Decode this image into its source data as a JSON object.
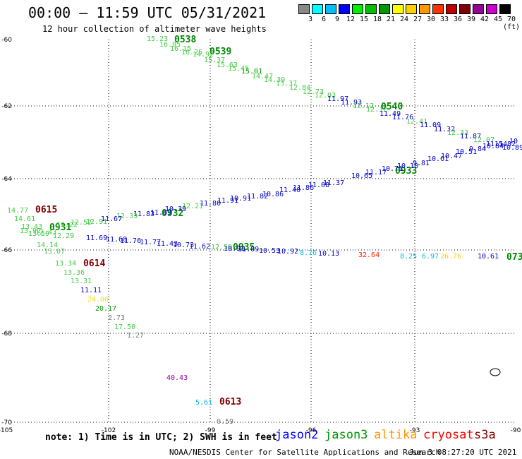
{
  "title": "00:00 – 11:59 UTC 05/31/2021",
  "subtitle": "12 hour collection of altimeter wave heights",
  "scale": {
    "colors": [
      "#888888",
      "#00ffff",
      "#00bfff",
      "#0000ff",
      "#00ee00",
      "#00c000",
      "#009900",
      "#ffff00",
      "#ffd000",
      "#ff9900",
      "#ff3300",
      "#c00000",
      "#800000",
      "#990099",
      "#cc00cc",
      "#000000"
    ],
    "labels": [
      "3",
      "6",
      "9",
      "12",
      "15",
      "18",
      "21",
      "24",
      "27",
      "30",
      "33",
      "36",
      "39",
      "42",
      "45",
      "70 (ft)"
    ]
  },
  "axis": {
    "lat_labels": [
      "-60",
      "-62",
      "-64",
      "-66",
      "-68",
      "-70"
    ],
    "lon_labels": [
      "-105",
      "-102",
      "-99",
      "-96",
      "-93",
      "-90"
    ]
  },
  "passes": [
    {
      "label": "0538",
      "color": "#008800"
    },
    {
      "label": "0539",
      "color": "#008800"
    },
    {
      "label": "0540",
      "color": "#008800"
    },
    {
      "label": "0933",
      "color": "#008800"
    },
    {
      "label": "0932",
      "color": "#008800"
    },
    {
      "label": "0931",
      "color": "#008800"
    },
    {
      "label": "0935",
      "color": "#008800"
    },
    {
      "label": "0615",
      "color": "#800000"
    },
    {
      "label": "0614",
      "color": "#800000"
    },
    {
      "label": "0613",
      "color": "#800000"
    },
    {
      "label": "073",
      "color": "#008800"
    }
  ],
  "swh": [
    {
      "v": "15.23",
      "c": "#44cc44"
    },
    {
      "v": "16.05",
      "c": "#44cc44"
    },
    {
      "v": "16.15",
      "c": "#44cc44"
    },
    {
      "v": "16.25",
      "c": "#44cc44"
    },
    {
      "v": "14.92",
      "c": "#44cc44"
    },
    {
      "v": "15.37",
      "c": "#44cc44"
    },
    {
      "v": "15.63",
      "c": "#44cc44"
    },
    {
      "v": "15.45",
      "c": "#44cc44"
    },
    {
      "v": "15.01",
      "c": "#009900"
    },
    {
      "v": "14.47",
      "c": "#44cc44"
    },
    {
      "v": "14.39",
      "c": "#44cc44"
    },
    {
      "v": "13.37",
      "c": "#44cc44"
    },
    {
      "v": "12.84",
      "c": "#44cc44"
    },
    {
      "v": "12.73",
      "c": "#44cc44"
    },
    {
      "v": "12.03",
      "c": "#44cc44"
    },
    {
      "v": "11.97",
      "c": "#0000cc"
    },
    {
      "v": "11.93",
      "c": "#0000cc"
    },
    {
      "v": "12.12",
      "c": "#44cc44"
    },
    {
      "v": "12.12",
      "c": "#44cc44"
    },
    {
      "v": "11.49",
      "c": "#0000cc"
    },
    {
      "v": "11.76",
      "c": "#0000cc"
    },
    {
      "v": "12.41",
      "c": "#44cc44"
    },
    {
      "v": "11.09",
      "c": "#0000cc"
    },
    {
      "v": "11.32",
      "c": "#0000cc"
    },
    {
      "v": "12.33",
      "c": "#44cc44"
    },
    {
      "v": "11.87",
      "c": "#0000cc"
    },
    {
      "v": "12.07",
      "c": "#44cc44"
    },
    {
      "v": "11.54",
      "c": "#0000cc"
    },
    {
      "v": "10",
      "c": "#0000cc"
    },
    {
      "v": "10.65",
      "c": "#0000cc"
    },
    {
      "v": "11.17",
      "c": "#0000cc"
    },
    {
      "v": "10.71",
      "c": "#0000cc"
    },
    {
      "v": "10.10",
      "c": "#0000cc"
    },
    {
      "v": "9.81",
      "c": "#0000cc"
    },
    {
      "v": "10.61",
      "c": "#0000cc"
    },
    {
      "v": "10.47",
      "c": "#0000cc"
    },
    {
      "v": "10.51",
      "c": "#0000cc"
    },
    {
      "v": "9.84",
      "c": "#0000cc"
    },
    {
      "v": "10.84",
      "c": "#0000cc"
    },
    {
      "v": "11.82",
      "c": "#0000cc"
    },
    {
      "v": "10.89",
      "c": "#0000cc"
    },
    {
      "v": "11.37",
      "c": "#0000cc"
    },
    {
      "v": "11.08",
      "c": "#0000cc"
    },
    {
      "v": "11.86",
      "c": "#0000cc"
    },
    {
      "v": "11.40",
      "c": "#0000cc"
    },
    {
      "v": "10.86",
      "c": "#0000cc"
    },
    {
      "v": "11.82",
      "c": "#0000cc"
    },
    {
      "v": "10.91",
      "c": "#0000cc"
    },
    {
      "v": "11.91",
      "c": "#0000cc"
    },
    {
      "v": "11.80",
      "c": "#0000cc"
    },
    {
      "v": "12.21",
      "c": "#44cc44"
    },
    {
      "v": "10.39",
      "c": "#0000cc"
    },
    {
      "v": "11.83",
      "c": "#0000cc"
    },
    {
      "v": "11.83",
      "c": "#0000cc"
    },
    {
      "v": "12.33",
      "c": "#44cc44"
    },
    {
      "v": "11.67",
      "c": "#0000cc"
    },
    {
      "v": "12.91",
      "c": "#44cc44"
    },
    {
      "v": "12.52",
      "c": "#44cc44"
    },
    {
      "v": "12.22",
      "c": "#44cc44"
    },
    {
      "v": "14.77",
      "c": "#44cc44"
    },
    {
      "v": "14.61",
      "c": "#44cc44"
    },
    {
      "v": "13.43",
      "c": "#44cc44"
    },
    {
      "v": "13.92",
      "c": "#44cc44"
    },
    {
      "v": "13.59",
      "c": "#44cc44"
    },
    {
      "v": "12.43",
      "c": "#44cc44"
    },
    {
      "v": "12.29",
      "c": "#44cc44"
    },
    {
      "v": "14.14",
      "c": "#44cc44"
    },
    {
      "v": "13.07",
      "c": "#44cc44"
    },
    {
      "v": "13.34",
      "c": "#44cc44"
    },
    {
      "v": "13.36",
      "c": "#44cc44"
    },
    {
      "v": "13.31",
      "c": "#44cc44"
    },
    {
      "v": "11.11",
      "c": "#0000cc"
    },
    {
      "v": "24.00",
      "c": "#ffdd00"
    },
    {
      "v": "20.17",
      "c": "#009900"
    },
    {
      "v": "2.73",
      "c": "#777777"
    },
    {
      "v": "17.50",
      "c": "#44cc44"
    },
    {
      "v": "1.27",
      "c": "#777777"
    },
    {
      "v": "11.69",
      "c": "#0000cc"
    },
    {
      "v": "11.68",
      "c": "#0000cc"
    },
    {
      "v": "11.76",
      "c": "#0000cc"
    },
    {
      "v": "11.77",
      "c": "#0000cc"
    },
    {
      "v": "11.43",
      "c": "#0000cc"
    },
    {
      "v": "10.73",
      "c": "#0000cc"
    },
    {
      "v": "11.62",
      "c": "#0000cc"
    },
    {
      "v": "12.59",
      "c": "#44cc44"
    },
    {
      "v": "10.91",
      "c": "#0000cc"
    },
    {
      "v": "11.09",
      "c": "#0000cc"
    },
    {
      "v": "10.53",
      "c": "#0000cc"
    },
    {
      "v": "10.92",
      "c": "#0000cc"
    },
    {
      "v": "8.76",
      "c": "#00bbdd"
    },
    {
      "v": "10.13",
      "c": "#0000cc"
    },
    {
      "v": "32.64",
      "c": "#ff2200"
    },
    {
      "v": "8.25",
      "c": "#00bbdd"
    },
    {
      "v": "6.97",
      "c": "#00bbdd"
    },
    {
      "v": "26.76",
      "c": "#ffcc00"
    },
    {
      "v": "10.61",
      "c": "#0000cc"
    },
    {
      "v": "40.43",
      "c": "#990099"
    },
    {
      "v": "5.61",
      "c": "#00bbdd"
    },
    {
      "v": "0.59",
      "c": "#777777"
    }
  ],
  "legend": {
    "note": "note: 1) Time is in UTC; 2) SWH is in feet",
    "satellites": [
      {
        "name": "jason2",
        "color": "#0000ff"
      },
      {
        "name": "jason3",
        "color": "#009900"
      },
      {
        "name": "altika",
        "color": "#ff9900"
      },
      {
        "name": "cryosat",
        "color": "#ff0000"
      },
      {
        "name": "s3a",
        "color": "#800000"
      }
    ]
  },
  "credit": "NOAA/NESDIS Center for Satellite Applications and Research",
  "timestamp": "Jun  3 08:27:20 UTC 2021"
}
